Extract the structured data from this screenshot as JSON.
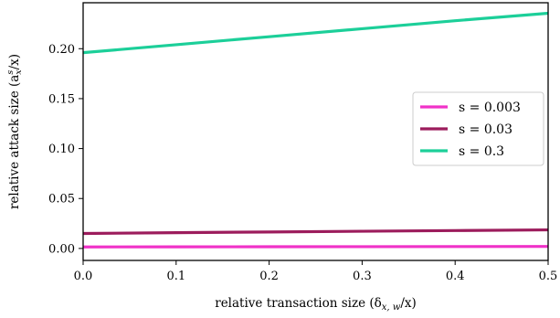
{
  "chart_data": {
    "type": "line",
    "xlabel": "relative transaction size (δ",
    "xlabel_sub": "x, w",
    "xlabel_tail": "/x)",
    "ylabel": "relative attack size (a",
    "ylabel_sup": "s",
    "ylabel_sub": "x",
    "ylabel_tail": "/x)",
    "xlim": [
      0.0,
      0.5
    ],
    "ylim": [
      -0.012,
      0.246
    ],
    "xticks": [
      0.0,
      0.1,
      0.2,
      0.3,
      0.4,
      0.5
    ],
    "xtick_labels": [
      "0.0",
      "0.1",
      "0.2",
      "0.3",
      "0.4",
      "0.5"
    ],
    "yticks": [
      0.0,
      0.05,
      0.1,
      0.15,
      0.2
    ],
    "ytick_labels": [
      "0.00",
      "0.05",
      "0.10",
      "0.15",
      "0.20"
    ],
    "grid": false,
    "legend_position": "center-right",
    "series": [
      {
        "name": "s = 0.003",
        "color": "#f032c8",
        "x": [
          0.0,
          0.1,
          0.2,
          0.3,
          0.4,
          0.5
        ],
        "y": [
          0.0015,
          0.0016,
          0.0017,
          0.0018,
          0.0019,
          0.002
        ]
      },
      {
        "name": "s = 0.03",
        "color": "#9c1c5c",
        "x": [
          0.0,
          0.1,
          0.2,
          0.3,
          0.4,
          0.5
        ],
        "y": [
          0.015,
          0.0158,
          0.0165,
          0.0172,
          0.0179,
          0.0186
        ]
      },
      {
        "name": "s = 0.3",
        "color": "#1ccf99",
        "x": [
          0.0,
          0.1,
          0.2,
          0.3,
          0.4,
          0.5
        ],
        "y": [
          0.196,
          0.204,
          0.212,
          0.22,
          0.228,
          0.2355
        ]
      }
    ]
  }
}
